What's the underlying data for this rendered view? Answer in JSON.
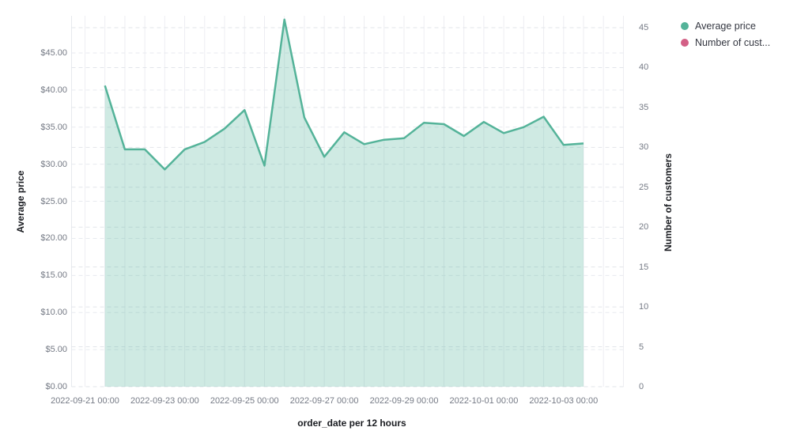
{
  "chart_data": {
    "type": "area",
    "title": "",
    "xlabel": "order_date per 12 hours",
    "x_interval": "12 hours",
    "grid": {
      "vertical": "solid",
      "horizontal": "dashed"
    },
    "legend_position": "top-right",
    "x": [
      "2022-09-21 12:00",
      "2022-09-22 00:00",
      "2022-09-22 12:00",
      "2022-09-23 00:00",
      "2022-09-23 12:00",
      "2022-09-24 00:00",
      "2022-09-24 12:00",
      "2022-09-25 00:00",
      "2022-09-25 12:00",
      "2022-09-26 00:00",
      "2022-09-26 12:00",
      "2022-09-27 00:00",
      "2022-09-27 12:00",
      "2022-09-28 00:00",
      "2022-09-28 12:00",
      "2022-09-29 00:00",
      "2022-09-29 12:00",
      "2022-09-30 00:00",
      "2022-09-30 12:00",
      "2022-10-01 00:00",
      "2022-10-01 12:00",
      "2022-10-02 00:00",
      "2022-10-02 12:00",
      "2022-10-03 00:00",
      "2022-10-03 12:00"
    ],
    "series": [
      {
        "name": "Average price",
        "axis": "left",
        "color": "#54B399",
        "fill_opacity": 0.28,
        "values": [
          40.6,
          32.0,
          32.0,
          29.3,
          32.0,
          33.0,
          34.8,
          37.3,
          29.8,
          49.5,
          36.3,
          31.0,
          34.3,
          32.7,
          33.3,
          33.5,
          35.6,
          35.4,
          33.8,
          35.7,
          34.2,
          35.0,
          36.4,
          32.6,
          32.8
        ]
      },
      {
        "name": "Number of customers",
        "axis": "right",
        "color": "#D36086",
        "values": []
      }
    ],
    "axes": {
      "left": {
        "label": "Average price",
        "range": [
          0,
          45
        ],
        "format": "currency",
        "tick_labels": [
          "$0.00",
          "$5.00",
          "$10.00",
          "$15.00",
          "$20.00",
          "$25.00",
          "$30.00",
          "$35.00",
          "$40.00",
          "$45.00"
        ]
      },
      "right": {
        "label": "Number of customers",
        "range": [
          0,
          45
        ],
        "tick_labels": [
          "0",
          "5",
          "10",
          "15",
          "20",
          "25",
          "30",
          "35",
          "40",
          "45"
        ]
      },
      "x": {
        "label": "order_date per 12 hours",
        "tick_labels": [
          "2022-09-21 00:00",
          "2022-09-23 00:00",
          "2022-09-25 00:00",
          "2022-09-27 00:00",
          "2022-09-29 00:00",
          "2022-10-01 00:00",
          "2022-10-03 00:00"
        ]
      }
    }
  },
  "legend": {
    "items": [
      {
        "label": "Average price",
        "color": "#54B399"
      },
      {
        "label": "Number of cust...",
        "color": "#D36086"
      }
    ]
  }
}
